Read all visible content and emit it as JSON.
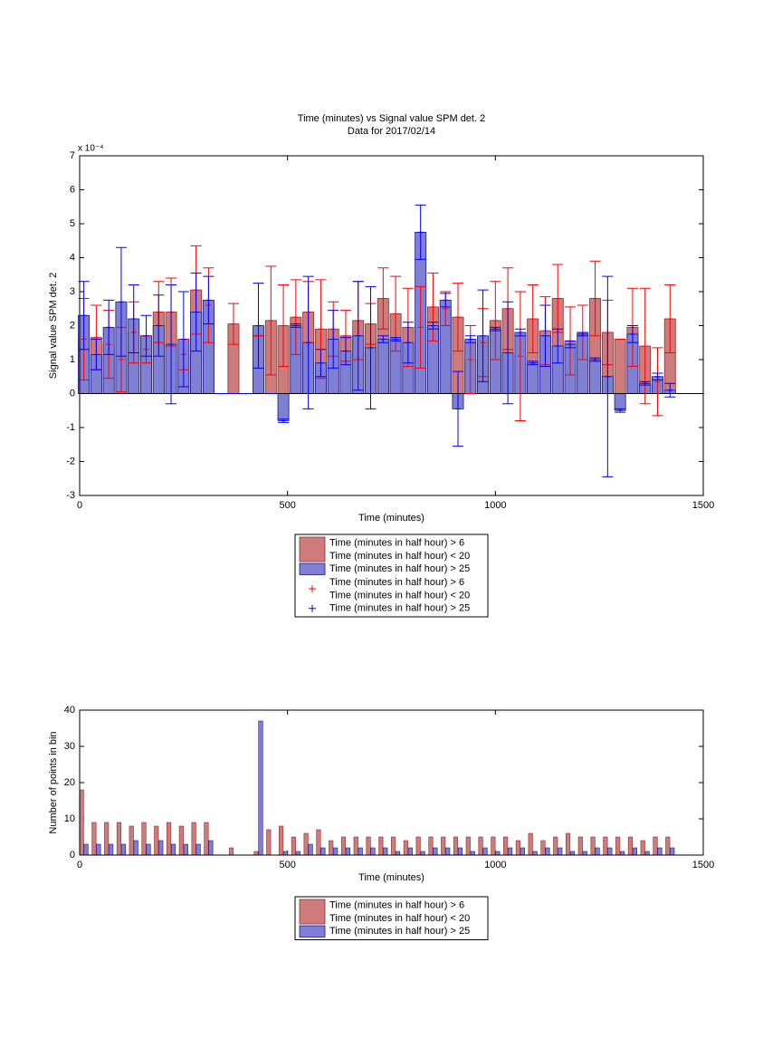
{
  "chart_data": [
    {
      "type": "errorbar",
      "title": "Time (minutes) vs Signal value SPM det. 2",
      "subtitle": "Data for 2017/02/14",
      "xlabel": "Time (minutes)",
      "ylabel": "Signal value SPM det. 2",
      "y_exponent": "x 10⁻⁴",
      "xlim": [
        0,
        1500
      ],
      "xticks": [
        0,
        500,
        1000,
        1500
      ],
      "ylim": [
        -3,
        7
      ],
      "yticks": [
        -3,
        -2,
        -1,
        0,
        1,
        2,
        3,
        4,
        5,
        6,
        7
      ],
      "bin_width": 30,
      "x": [
        10,
        40,
        70,
        100,
        130,
        160,
        190,
        220,
        250,
        280,
        310,
        340,
        370,
        400,
        430,
        460,
        490,
        520,
        550,
        580,
        610,
        640,
        670,
        700,
        730,
        760,
        790,
        820,
        850,
        880,
        910,
        940,
        970,
        1000,
        1030,
        1060,
        1090,
        1120,
        1150,
        1180,
        1210,
        1240,
        1270,
        1300,
        1330,
        1360,
        1390,
        1420
      ],
      "series": [
        {
          "name": "Time (minutes in half hour) > 6\nTime (minutes in half hour) < 20",
          "color": "#cd7b7b",
          "edgecolor": "#8a3030",
          "error_color": "#ff0000",
          "values": [
            1.6,
            1.65,
            1.45,
            1.0,
            1.8,
            1.3,
            2.4,
            2.4,
            1.15,
            3.05,
            2.6,
            null,
            2.05,
            null,
            1.7,
            2.15,
            2.0,
            2.25,
            2.4,
            1.9,
            1.9,
            1.7,
            2.15,
            2.05,
            2.8,
            2.35,
            1.95,
            1.95,
            2.55,
            2.5,
            2.25,
            1.0,
            1.5,
            2.15,
            2.5,
            1.1,
            2.2,
            1.85,
            2.8,
            1.55,
            1.8,
            2.8,
            1.8,
            1.6,
            1.95,
            1.4,
            0.35,
            2.2
          ],
          "errors": [
            1.2,
            0.95,
            1.0,
            0.95,
            0.9,
            0.4,
            0.9,
            1.0,
            0.45,
            1.3,
            1.1,
            null,
            0.6,
            null,
            0,
            1.6,
            1.2,
            1.1,
            0.9,
            1.45,
            0.8,
            0.75,
            1.15,
            0.6,
            0.9,
            1.1,
            1.15,
            1.2,
            1.0,
            0.5,
            1.0,
            1.0,
            1.0,
            1.15,
            1.2,
            1.9,
            1.0,
            1.0,
            1.0,
            1.0,
            0.8,
            1.1,
            0.95,
            0,
            1.15,
            1.7,
            1.0,
            1.0
          ]
        },
        {
          "name": "Time (minutes in half hour) > 25",
          "color": "#7f7fd4",
          "edgecolor": "#1a1a8c",
          "error_color": "#0000ff",
          "values": [
            2.3,
            1.15,
            1.95,
            2.7,
            2.2,
            1.7,
            2.0,
            1.45,
            1.6,
            2.4,
            2.75,
            0,
            0,
            0,
            2.0,
            0,
            -0.8,
            2.0,
            1.5,
            0.9,
            1.6,
            1.25,
            1.7,
            1.35,
            1.6,
            1.6,
            1.5,
            4.75,
            2.0,
            2.75,
            -0.45,
            1.6,
            1.7,
            1.9,
            1.2,
            1.8,
            0.9,
            1.7,
            1.4,
            1.45,
            1.75,
            1.0,
            0.5,
            -0.5,
            1.75,
            0.3,
            0.5,
            0.1
          ],
          "errors": [
            1.0,
            0.45,
            0.8,
            1.6,
            1.0,
            0.6,
            0.9,
            1.75,
            1.4,
            1.15,
            0.7,
            0,
            0,
            0,
            1.25,
            0,
            0.05,
            0.05,
            1.95,
            0.4,
            0.85,
            0.4,
            1.6,
            1.8,
            0.1,
            0.05,
            0.6,
            0.8,
            0.1,
            0.2,
            1.1,
            0.1,
            1.35,
            0.05,
            1.5,
            0.1,
            0.05,
            0.9,
            0.5,
            0.1,
            0.05,
            0.05,
            2.95,
            0.05,
            0.25,
            0.05,
            0.1,
            0.2
          ]
        }
      ]
    },
    {
      "type": "bar",
      "xlabel": "Time (minutes)",
      "ylabel": "Number of points in bin",
      "xlim": [
        0,
        1500
      ],
      "xticks": [
        0,
        500,
        1000,
        1500
      ],
      "ylim": [
        0,
        40
      ],
      "yticks": [
        0,
        10,
        20,
        30,
        40
      ],
      "bin_width": 30,
      "x": [
        10,
        40,
        70,
        100,
        130,
        160,
        190,
        220,
        250,
        280,
        310,
        340,
        370,
        400,
        430,
        460,
        490,
        520,
        550,
        580,
        610,
        640,
        670,
        700,
        730,
        760,
        790,
        820,
        850,
        880,
        910,
        940,
        970,
        1000,
        1030,
        1060,
        1090,
        1120,
        1150,
        1180,
        1210,
        1240,
        1270,
        1300,
        1330,
        1360,
        1390,
        1420
      ],
      "series": [
        {
          "name": "Time (minutes in half hour) > 6\nTime (minutes in half hour) < 20",
          "color": "#cd7b7b",
          "edgecolor": "#8a3030",
          "values": [
            18,
            9,
            9,
            9,
            8,
            9,
            8,
            9,
            8,
            9,
            9,
            0,
            2,
            0,
            1,
            7,
            8,
            5,
            6,
            7,
            4,
            5,
            5,
            5,
            5,
            5,
            4,
            5,
            5,
            5,
            5,
            5,
            5,
            5,
            5,
            4,
            6,
            4,
            5,
            6,
            5,
            5,
            5,
            5,
            5,
            4,
            5,
            5
          ]
        },
        {
          "name": "Time (minutes in half hour) > 25",
          "color": "#7f7fd4",
          "edgecolor": "#1a1a8c",
          "values": [
            3,
            3,
            3,
            3,
            4,
            3,
            4,
            3,
            3,
            3,
            4,
            0,
            0,
            0,
            37,
            0,
            1,
            1,
            3,
            2,
            2,
            2,
            2,
            2,
            2,
            1,
            2,
            1,
            2,
            2,
            2,
            1,
            2,
            1,
            2,
            2,
            1,
            2,
            2,
            1,
            1,
            2,
            2,
            1,
            2,
            1,
            2,
            2
          ]
        }
      ]
    }
  ]
}
